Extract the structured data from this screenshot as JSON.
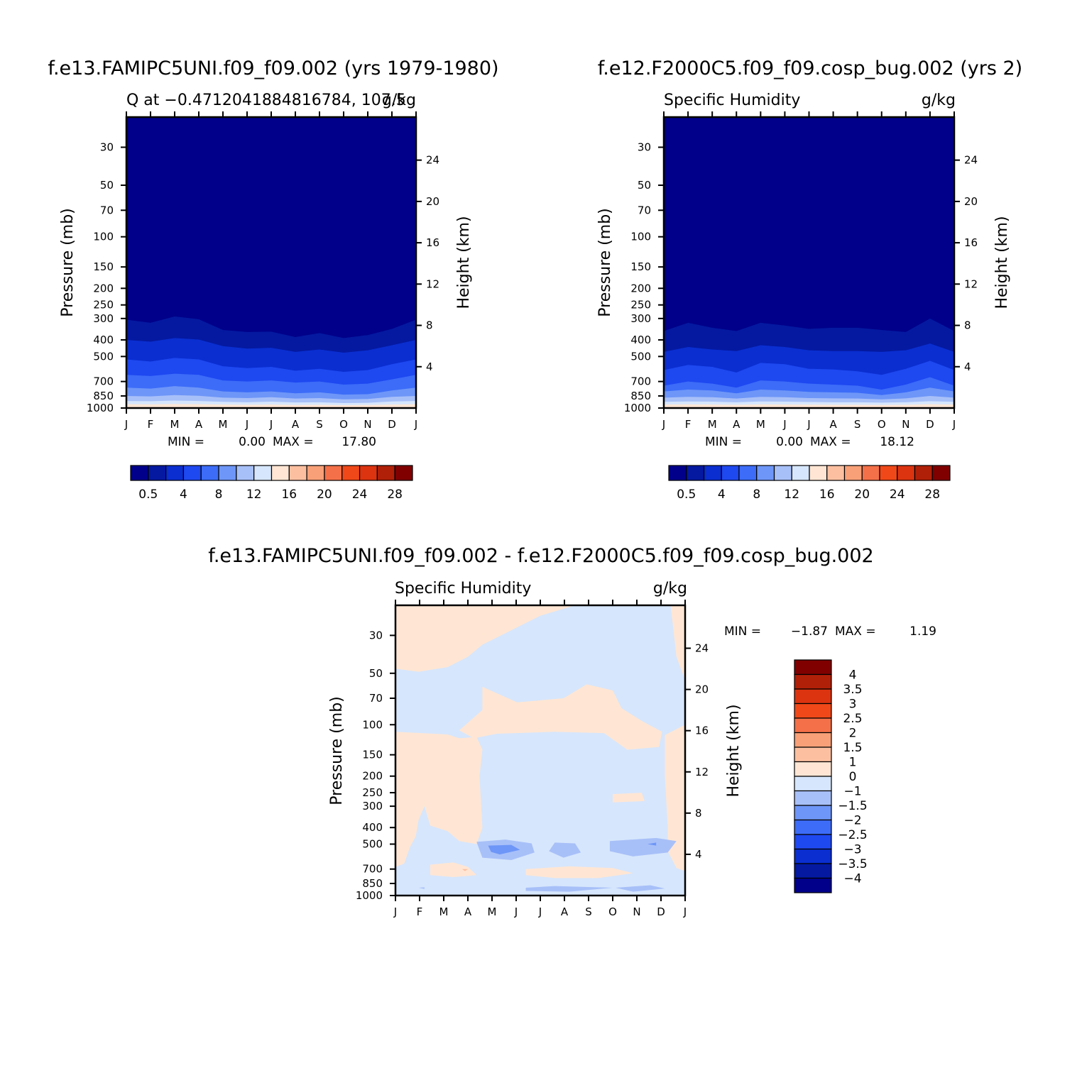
{
  "chart_data": [
    {
      "type": "contour",
      "title": "f.e13.FAMIPC5UNI.f09_f09.002 (yrs 1979-1980)",
      "subtitle_left": "Q at -0.4712041884816784, 107.5",
      "subtitle_right": "g/kg",
      "xlabel": "",
      "ylabel": "Pressure (mb)",
      "ylabel_right": "Height (km)",
      "x_ticks": [
        "J",
        "F",
        "M",
        "A",
        "M",
        "J",
        "J",
        "A",
        "S",
        "O",
        "N",
        "D",
        "J"
      ],
      "y_ticks": [
        30,
        50,
        70,
        100,
        150,
        200,
        250,
        300,
        400,
        500,
        700,
        850,
        1000
      ],
      "y_right_ticks": [
        24,
        20,
        16,
        12,
        8,
        4
      ],
      "ylim": [
        20,
        1000
      ],
      "y_scale": "log",
      "min_text": "MIN =",
      "min_value": "0.00",
      "max_text": "MAX =",
      "max_value": "17.80",
      "contour_levels_printed": [
        "0.5",
        "4",
        "8",
        "12",
        "16",
        "20",
        "24",
        "28"
      ],
      "colors": [
        "#00008a",
        "#0419a0",
        "#0a2ed0",
        "#1e48f0",
        "#3c6cf8",
        "#6e96f8",
        "#a8c0f8",
        "#d6e6fc",
        "#ffe6d4",
        "#fcc0a0",
        "#f8a078",
        "#f47048",
        "#f04818",
        "#dc3410",
        "#b02008",
        "#800000"
      ],
      "approx_pressure_bands_mb": [
        {
          "level": 1,
          "top": [
            305,
            318,
            292,
            303,
            350,
            360,
            358,
            385,
            365,
            390,
            375,
            345,
            305
          ]
        },
        {
          "level": 2,
          "top": [
            400,
            410,
            390,
            398,
            435,
            450,
            445,
            470,
            455,
            475,
            460,
            430,
            400
          ]
        },
        {
          "level": 3,
          "top": [
            520,
            535,
            510,
            520,
            570,
            585,
            575,
            605,
            590,
            615,
            600,
            555,
            520
          ]
        },
        {
          "level": 4,
          "top": [
            640,
            650,
            630,
            640,
            690,
            700,
            690,
            710,
            700,
            730,
            720,
            680,
            640
          ]
        },
        {
          "level": 5,
          "top": [
            760,
            770,
            745,
            760,
            800,
            810,
            800,
            820,
            810,
            835,
            830,
            790,
            760
          ]
        },
        {
          "level": 6,
          "top": [
            850,
            855,
            840,
            848,
            870,
            875,
            865,
            880,
            875,
            890,
            885,
            860,
            850
          ]
        },
        {
          "level": 7,
          "top": [
            910,
            912,
            905,
            910,
            920,
            925,
            918,
            928,
            925,
            935,
            932,
            915,
            910
          ]
        },
        {
          "level": 8,
          "top": [
            950,
            952,
            948,
            950,
            955,
            958,
            955,
            960,
            958,
            962,
            960,
            954,
            950
          ]
        }
      ]
    },
    {
      "type": "contour",
      "title": "f.e12.F2000C5.f09_f09.cosp_bug.002 (yrs 2)",
      "subtitle_left": "Specific Humidity",
      "subtitle_right": "g/kg",
      "xlabel": "",
      "ylabel": "Pressure (mb)",
      "ylabel_right": "Height (km)",
      "x_ticks": [
        "J",
        "F",
        "M",
        "A",
        "M",
        "J",
        "J",
        "A",
        "S",
        "O",
        "N",
        "D",
        "J"
      ],
      "y_ticks": [
        30,
        50,
        70,
        100,
        150,
        200,
        250,
        300,
        400,
        500,
        700,
        850,
        1000
      ],
      "y_right_ticks": [
        24,
        20,
        16,
        12,
        8,
        4
      ],
      "ylim": [
        20,
        1000
      ],
      "y_scale": "log",
      "min_text": "MIN =",
      "min_value": "0.00",
      "max_text": "MAX =",
      "max_value": "18.12",
      "contour_levels_printed": [
        "0.5",
        "4",
        "8",
        "12",
        "16",
        "20",
        "24",
        "28"
      ],
      "colors": [
        "#00008a",
        "#0419a0",
        "#0a2ed0",
        "#1e48f0",
        "#3c6cf8",
        "#6e96f8",
        "#a8c0f8",
        "#d6e6fc",
        "#ffe6d4",
        "#fcc0a0",
        "#f8a078",
        "#f47048",
        "#f04818",
        "#dc3410",
        "#b02008",
        "#800000"
      ],
      "approx_pressure_bands_mb": [
        {
          "level": 1,
          "top": [
            355,
            318,
            340,
            355,
            318,
            330,
            345,
            340,
            340,
            350,
            360,
            300,
            355
          ]
        },
        {
          "level": 2,
          "top": [
            470,
            440,
            455,
            465,
            430,
            440,
            460,
            465,
            465,
            470,
            460,
            420,
            470
          ]
        },
        {
          "level": 3,
          "top": [
            600,
            560,
            575,
            620,
            545,
            555,
            590,
            595,
            610,
            640,
            590,
            530,
            600
          ]
        },
        {
          "level": 4,
          "top": [
            740,
            700,
            720,
            760,
            690,
            700,
            720,
            730,
            740,
            780,
            730,
            660,
            740
          ]
        },
        {
          "level": 5,
          "top": [
            800,
            780,
            790,
            820,
            780,
            790,
            805,
            810,
            815,
            840,
            810,
            760,
            800
          ]
        },
        {
          "level": 6,
          "top": [
            870,
            860,
            865,
            880,
            860,
            865,
            875,
            878,
            880,
            890,
            878,
            850,
            870
          ]
        },
        {
          "level": 7,
          "top": [
            920,
            915,
            918,
            925,
            915,
            918,
            922,
            925,
            925,
            930,
            925,
            912,
            920
          ]
        },
        {
          "level": 8,
          "top": [
            955,
            952,
            954,
            958,
            952,
            954,
            956,
            958,
            958,
            960,
            958,
            950,
            955
          ]
        }
      ]
    },
    {
      "type": "contour",
      "title": "f.e13.FAMIPC5UNI.f09_f09.002 - f.e12.F2000C5.f09_f09.cosp_bug.002",
      "subtitle_left": "Specific Humidity",
      "subtitle_right": "g/kg",
      "xlabel": "",
      "ylabel": "Pressure (mb)",
      "ylabel_right": "Height (km)",
      "x_ticks": [
        "J",
        "F",
        "M",
        "A",
        "M",
        "J",
        "J",
        "A",
        "S",
        "O",
        "N",
        "D",
        "J"
      ],
      "y_ticks": [
        30,
        50,
        70,
        100,
        150,
        200,
        250,
        300,
        400,
        500,
        700,
        850,
        1000
      ],
      "y_right_ticks": [
        24,
        20,
        16,
        12,
        8,
        4
      ],
      "ylim": [
        20,
        1000
      ],
      "y_scale": "log",
      "min_text": "MIN =",
      "min_value": "-1.87",
      "max_text": "MAX =",
      "max_value": "1.19",
      "contour_levels_printed": [
        "4",
        "3.5",
        "3",
        "2.5",
        "2",
        "1.5",
        "1",
        "0",
        "-1",
        "-1.5",
        "-2",
        "-2.5",
        "-3",
        "-3.5",
        "-4"
      ],
      "colors": [
        "#800000",
        "#b02008",
        "#dc3410",
        "#f04818",
        "#f47048",
        "#f8a078",
        "#fcc0a0",
        "#ffe6d4",
        "#d6e6fc",
        "#a8c0f8",
        "#6e96f8",
        "#3c6cf8",
        "#1e48f0",
        "#0a2ed0",
        "#0419a0",
        "#00008a"
      ],
      "sign_regions": [
        {
          "sign": "positive",
          "description": "upper stratosphere 20-50 mb in Jan-Apr and near late Dec"
        },
        {
          "sign": "positive",
          "description": "upper troposphere 70-100 mb Apr-Oct"
        },
        {
          "sign": "positive",
          "description": "mid troposphere 100-600 mb Jan-Apr"
        },
        {
          "sign": "negative",
          "description": "broad region 100-1000 mb May-Dec"
        },
        {
          "sign": "negative",
          "description": "-1 to -1.5 minima near 500 mb in May-Jun, Aug, and Oct-Dec"
        }
      ]
    }
  ]
}
